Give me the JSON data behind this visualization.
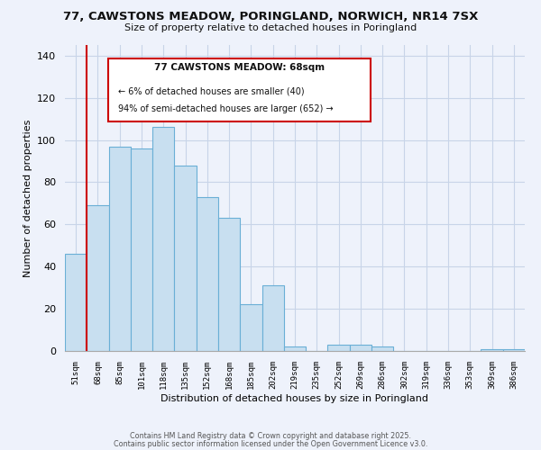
{
  "title_line1": "77, CAWSTONS MEADOW, PORINGLAND, NORWICH, NR14 7SX",
  "title_line2": "Size of property relative to detached houses in Poringland",
  "categories": [
    "51sqm",
    "68sqm",
    "85sqm",
    "101sqm",
    "118sqm",
    "135sqm",
    "152sqm",
    "168sqm",
    "185sqm",
    "202sqm",
    "219sqm",
    "235sqm",
    "252sqm",
    "269sqm",
    "286sqm",
    "302sqm",
    "319sqm",
    "336sqm",
    "353sqm",
    "369sqm",
    "386sqm"
  ],
  "values": [
    46,
    69,
    97,
    96,
    106,
    88,
    73,
    63,
    22,
    31,
    2,
    0,
    3,
    3,
    2,
    0,
    0,
    0,
    0,
    1,
    1
  ],
  "bar_color": "#c8dff0",
  "bar_edge_color": "#6aafd6",
  "highlight_color": "#cc0000",
  "xlabel": "Distribution of detached houses by size in Poringland",
  "ylabel": "Number of detached properties",
  "ylim": [
    0,
    145
  ],
  "yticks": [
    0,
    20,
    40,
    60,
    80,
    100,
    120,
    140
  ],
  "annotation_title": "77 CAWSTONS MEADOW: 68sqm",
  "annotation_line2": "← 6% of detached houses are smaller (40)",
  "annotation_line3": "94% of semi-detached houses are larger (652) →",
  "footer_line1": "Contains HM Land Registry data © Crown copyright and database right 2025.",
  "footer_line2": "Contains public sector information licensed under the Open Government Licence v3.0.",
  "bg_color": "#eef2fb",
  "grid_color": "#c8d4e8"
}
